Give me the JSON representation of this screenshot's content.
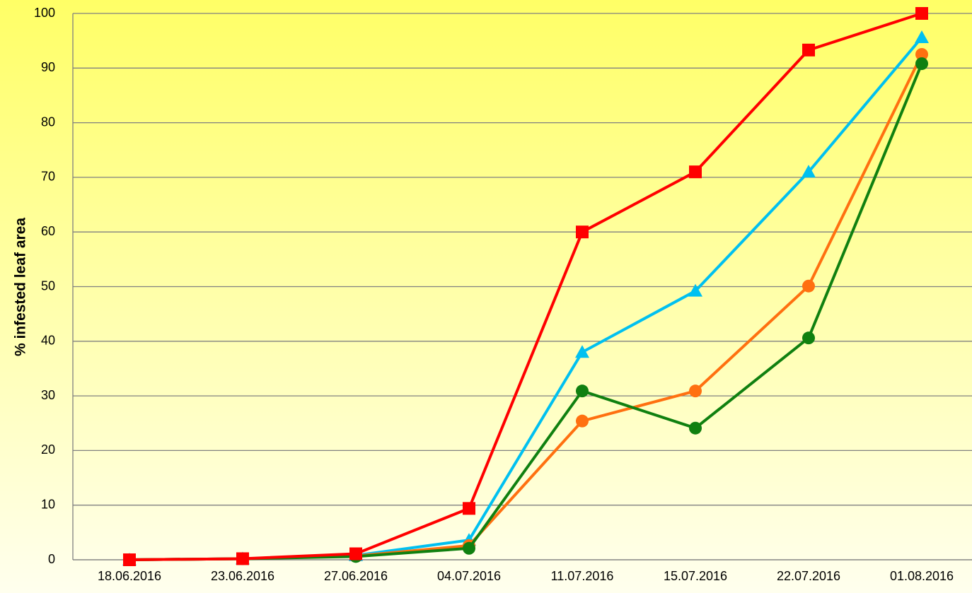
{
  "chart_data": {
    "type": "line",
    "y_label": "% infested leaf area",
    "categories": [
      "18.06.2016",
      "23.06.2016",
      "27.06.2016",
      "04.07.2016",
      "11.07.2016",
      "15.07.2016",
      "22.07.2016",
      "01.08.2016"
    ],
    "series": [
      {
        "color": "#00c0f0",
        "marker": "triangle",
        "values": [
          0,
          0.2,
          0.8,
          3.6,
          38,
          49.2,
          71,
          95.6
        ]
      },
      {
        "color": "#ff7010",
        "marker": "circle",
        "values": [
          0,
          0.2,
          0.7,
          2.6,
          25.4,
          30.9,
          50.1,
          92.5
        ]
      },
      {
        "color": "#108010",
        "marker": "circle",
        "values": [
          0,
          0.2,
          0.6,
          2.1,
          30.9,
          24.1,
          40.6,
          90.8
        ]
      },
      {
        "color": "#ff0000",
        "marker": "square",
        "values": [
          0,
          0.2,
          1.1,
          9.4,
          60,
          71,
          93.3,
          100
        ]
      }
    ],
    "ylim": [
      0,
      100
    ],
    "yticks": [
      0,
      10,
      20,
      30,
      40,
      50,
      60,
      70,
      80,
      90,
      100
    ],
    "grid": true
  }
}
